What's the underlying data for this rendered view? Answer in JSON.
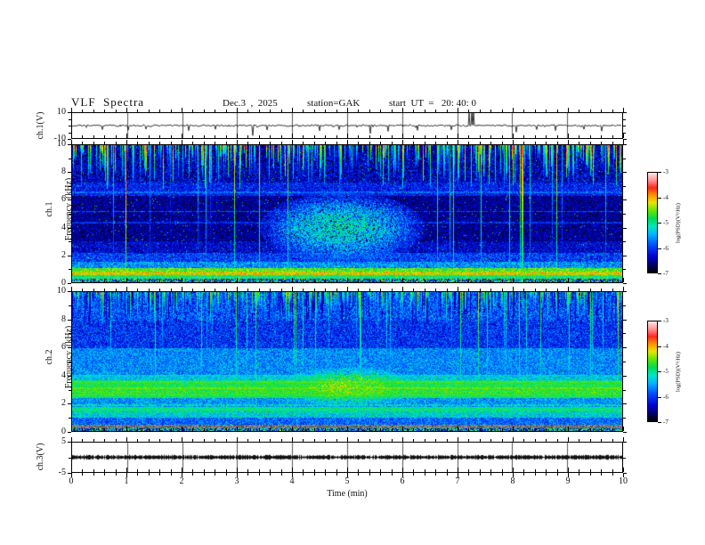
{
  "header": {
    "title": "VLF  Spectra",
    "date": "Dec.3  ,  2025",
    "station": "station=GAK",
    "start_ut": "start  UT  =   20: 40: 0"
  },
  "time_axis": {
    "label": "Time  (min)",
    "min": 0,
    "max": 10,
    "major_step": 1,
    "minor_step": 0.2,
    "tick_labels": [
      "0",
      "1",
      "2",
      "3",
      "4",
      "5",
      "6",
      "7",
      "8",
      "9",
      "10"
    ]
  },
  "panels": {
    "ch1wave": {
      "ylabel": "ch.1(V)",
      "ymin": -10,
      "ymax": 10,
      "ymajor": [
        10,
        -10
      ],
      "yminor": [
        5,
        0,
        -5
      ],
      "yticklabels": [
        {
          "v": 10,
          "text": "10"
        },
        {
          "v": -10,
          "text": "-10"
        }
      ]
    },
    "spec1": {
      "ylabel_line1": "ch.1",
      "ylabel_line2": "Frequency  (kHz)",
      "ymin": 0,
      "ymax": 10,
      "ymajor": [
        0,
        2,
        4,
        6,
        8,
        10
      ],
      "yminor": [
        1,
        3,
        5,
        7,
        9
      ],
      "yticklabels": [
        {
          "v": 10,
          "text": "10"
        },
        {
          "v": 8,
          "text": "8"
        },
        {
          "v": 6,
          "text": "6"
        },
        {
          "v": 4,
          "text": "4"
        },
        {
          "v": 2,
          "text": "2"
        },
        {
          "v": 0,
          "text": "0"
        }
      ]
    },
    "spec2": {
      "ylabel_line1": "ch.2",
      "ylabel_line2": "Frequency  (kHz)",
      "ymin": 0,
      "ymax": 10,
      "ymajor": [
        0,
        2,
        4,
        6,
        8,
        10
      ],
      "yminor": [
        1,
        3,
        5,
        7,
        9
      ],
      "yticklabels": [
        {
          "v": 10,
          "text": "10"
        },
        {
          "v": 8,
          "text": "8"
        },
        {
          "v": 6,
          "text": "6"
        },
        {
          "v": 4,
          "text": "4"
        },
        {
          "v": 2,
          "text": "2"
        },
        {
          "v": 0,
          "text": "0"
        }
      ]
    },
    "ch3": {
      "ylabel": "ch.3(V)",
      "ymin": -5,
      "ymax": 5,
      "ymajor": [
        5,
        -5
      ],
      "yminor": [
        0
      ],
      "yticklabels": [
        {
          "v": 5,
          "text": "5"
        },
        {
          "v": -5,
          "text": "-5"
        }
      ]
    }
  },
  "colorbar": {
    "label": "log(PSD)(V²/Hz)",
    "tick_labels": [
      "-3",
      "-4",
      "-5",
      "-6",
      "-7"
    ],
    "zmin": -7,
    "zmax": -3,
    "stops": [
      [
        0.0,
        "#000000"
      ],
      [
        0.06,
        "#000050"
      ],
      [
        0.16,
        "#0000d2"
      ],
      [
        0.28,
        "#0050ff"
      ],
      [
        0.38,
        "#00b4ff"
      ],
      [
        0.46,
        "#00e6c8"
      ],
      [
        0.54,
        "#00dc50"
      ],
      [
        0.62,
        "#64e600"
      ],
      [
        0.7,
        "#e6e600"
      ],
      [
        0.78,
        "#ff8c00"
      ],
      [
        0.85,
        "#ff2820"
      ],
      [
        0.92,
        "#ff9090"
      ],
      [
        1.0,
        "#ffe6e6"
      ]
    ]
  },
  "chart_data": [
    {
      "type": "line",
      "name": "ch1-voltage-waveform",
      "xlabel": "Time (min)",
      "ylabel": "ch.1(V)",
      "xlim": [
        0,
        10
      ],
      "ylim": [
        -10,
        10
      ],
      "baseline": 0,
      "noise_amplitude": 0.7,
      "seed": 3,
      "spikes": [
        {
          "t": 0.55,
          "v": -3.2
        },
        {
          "t": 1.02,
          "v": -3.6
        },
        {
          "t": 1.35,
          "v": -2.8
        },
        {
          "t": 2.12,
          "v": -4.0
        },
        {
          "t": 2.6,
          "v": -3.0
        },
        {
          "t": 3.28,
          "v": -8.0
        },
        {
          "t": 3.55,
          "v": -3.5
        },
        {
          "t": 4.5,
          "v": -4.2
        },
        {
          "t": 4.85,
          "v": -3.2
        },
        {
          "t": 5.42,
          "v": -6.3
        },
        {
          "t": 5.75,
          "v": -4.6
        },
        {
          "t": 6.28,
          "v": -3.8
        },
        {
          "t": 6.9,
          "v": -3.4
        },
        {
          "t": 7.22,
          "v": 10.0
        },
        {
          "t": 7.26,
          "v": 10.0
        },
        {
          "t": 7.3,
          "v": 10.0
        },
        {
          "t": 8.08,
          "v": -5.2
        },
        {
          "t": 8.45,
          "v": -3.2
        },
        {
          "t": 8.78,
          "v": -4.0
        },
        {
          "t": 9.3,
          "v": -3.0
        },
        {
          "t": 9.62,
          "v": -4.4
        }
      ]
    },
    {
      "type": "heatmap",
      "name": "ch1-spectrogram",
      "xlabel": "Time (min)",
      "ylabel": "Frequency (kHz)",
      "zlabel": "log(PSD)(V²/Hz)",
      "xlim": [
        0,
        10
      ],
      "ylim": [
        0,
        10
      ],
      "zlim": [
        -7,
        -3
      ],
      "seed": 7,
      "bands": [
        {
          "f": [
            0,
            0.28
          ],
          "type": "speckle",
          "v": [
            -7,
            -4.2
          ]
        },
        {
          "f": [
            0.28,
            0.55
          ],
          "v": -4.9,
          "n": 0.5
        },
        {
          "f": [
            0.55,
            0.8
          ],
          "v": -4.2,
          "n": 0.45
        },
        {
          "f": [
            0.8,
            1.05
          ],
          "v": -4.6,
          "n": 0.4
        },
        {
          "f": [
            1.05,
            1.5
          ],
          "v": -5.6,
          "n": 0.5
        },
        {
          "f": [
            1.5,
            2.2
          ],
          "v": -6.0,
          "n": 0.45
        },
        {
          "f": [
            2.2,
            3.0
          ],
          "v": -6.35,
          "n": 0.4
        },
        {
          "f": [
            3.0,
            6.3
          ],
          "v": -6.55,
          "n": 0.35
        },
        {
          "f": [
            6.3,
            7.3
          ],
          "v": -6.15,
          "n": 0.4
        },
        {
          "f": [
            7.3,
            10.01
          ],
          "v": -6.4,
          "n": 0.5
        }
      ],
      "streaks": {
        "prob": 0.5,
        "vmin": -5.6,
        "vmax": -3.4,
        "lmin": 0.4,
        "lmax": 3.2,
        "full_prob": 0.1
      },
      "top_dark_prob": 0.3,
      "blob": {
        "t": 4.9,
        "f": 4.0,
        "rt": 1.5,
        "rf": 2.6,
        "peak": -5.15
      },
      "hlines": [
        {
          "f": 6.6,
          "v": -5.7
        },
        {
          "f": 5.2,
          "v": -5.85
        },
        {
          "f": 4.4,
          "v": -6.0
        }
      ],
      "sparkle": 0.012
    },
    {
      "type": "heatmap",
      "name": "ch2-spectrogram",
      "xlabel": "Time (min)",
      "ylabel": "Frequency (kHz)",
      "zlabel": "log(PSD)(V²/Hz)",
      "xlim": [
        0,
        10
      ],
      "ylim": [
        0,
        10
      ],
      "zlim": [
        -7,
        -3
      ],
      "seed": 99,
      "bands": [
        {
          "f": [
            0,
            0.25
          ],
          "type": "speckle",
          "v": [
            -7,
            -4.3
          ]
        },
        {
          "f": [
            0.25,
            0.5
          ],
          "type": "gray"
        },
        {
          "f": [
            0.5,
            1.0
          ],
          "v": -5.8,
          "n": 0.4
        },
        {
          "f": [
            1.0,
            1.45
          ],
          "v": -5.3,
          "n": 0.45
        },
        {
          "f": [
            1.45,
            1.75
          ],
          "v": -5.0,
          "n": 0.4
        },
        {
          "f": [
            1.75,
            2.4
          ],
          "v": -5.6,
          "n": 0.4
        },
        {
          "f": [
            2.4,
            2.75
          ],
          "v": -4.85,
          "n": 0.3
        },
        {
          "f": [
            2.75,
            3.0
          ],
          "v": -4.7,
          "n": 0.3
        },
        {
          "f": [
            3.0,
            3.45
          ],
          "v": -4.8,
          "n": 0.3
        },
        {
          "f": [
            3.45,
            3.7
          ],
          "v": -4.95,
          "n": 0.35
        },
        {
          "f": [
            3.7,
            4.1
          ],
          "v": -5.35,
          "n": 0.4
        },
        {
          "f": [
            4.1,
            6.0
          ],
          "v": -5.65,
          "n": 0.4
        },
        {
          "f": [
            6.0,
            8.0
          ],
          "v": -6.05,
          "n": 0.45
        },
        {
          "f": [
            8.0,
            10.01
          ],
          "v": -5.9,
          "n": 0.5
        }
      ],
      "streaks": {
        "prob": 0.42,
        "vmin": -5.4,
        "vmax": -4.2,
        "lmin": 0.3,
        "lmax": 2.2,
        "full_prob": 0.15
      },
      "top_dark_prob": 0.28,
      "blob": {
        "t": 5.0,
        "f": 3.2,
        "rt": 1.3,
        "rf": 1.4,
        "peak": -4.5
      },
      "hlines": [
        {
          "f": 1.35,
          "v": -5.0
        },
        {
          "f": 1.9,
          "v": -5.1
        },
        {
          "f": 4.05,
          "v": -5.2
        },
        {
          "f": 2.62,
          "v": -4.55
        },
        {
          "f": 3.1,
          "v": -4.5
        },
        {
          "f": 3.55,
          "v": -4.6
        }
      ],
      "sparkle": 0.01
    },
    {
      "type": "line",
      "name": "ch3-voltage-waveform",
      "xlabel": "Time (min)",
      "ylabel": "ch.3(V)",
      "xlim": [
        0,
        10
      ],
      "ylim": [
        -5,
        5
      ],
      "baseline": 0,
      "noise_amplitude": 0.3,
      "seed": 5,
      "style": "dense-black-band"
    }
  ]
}
